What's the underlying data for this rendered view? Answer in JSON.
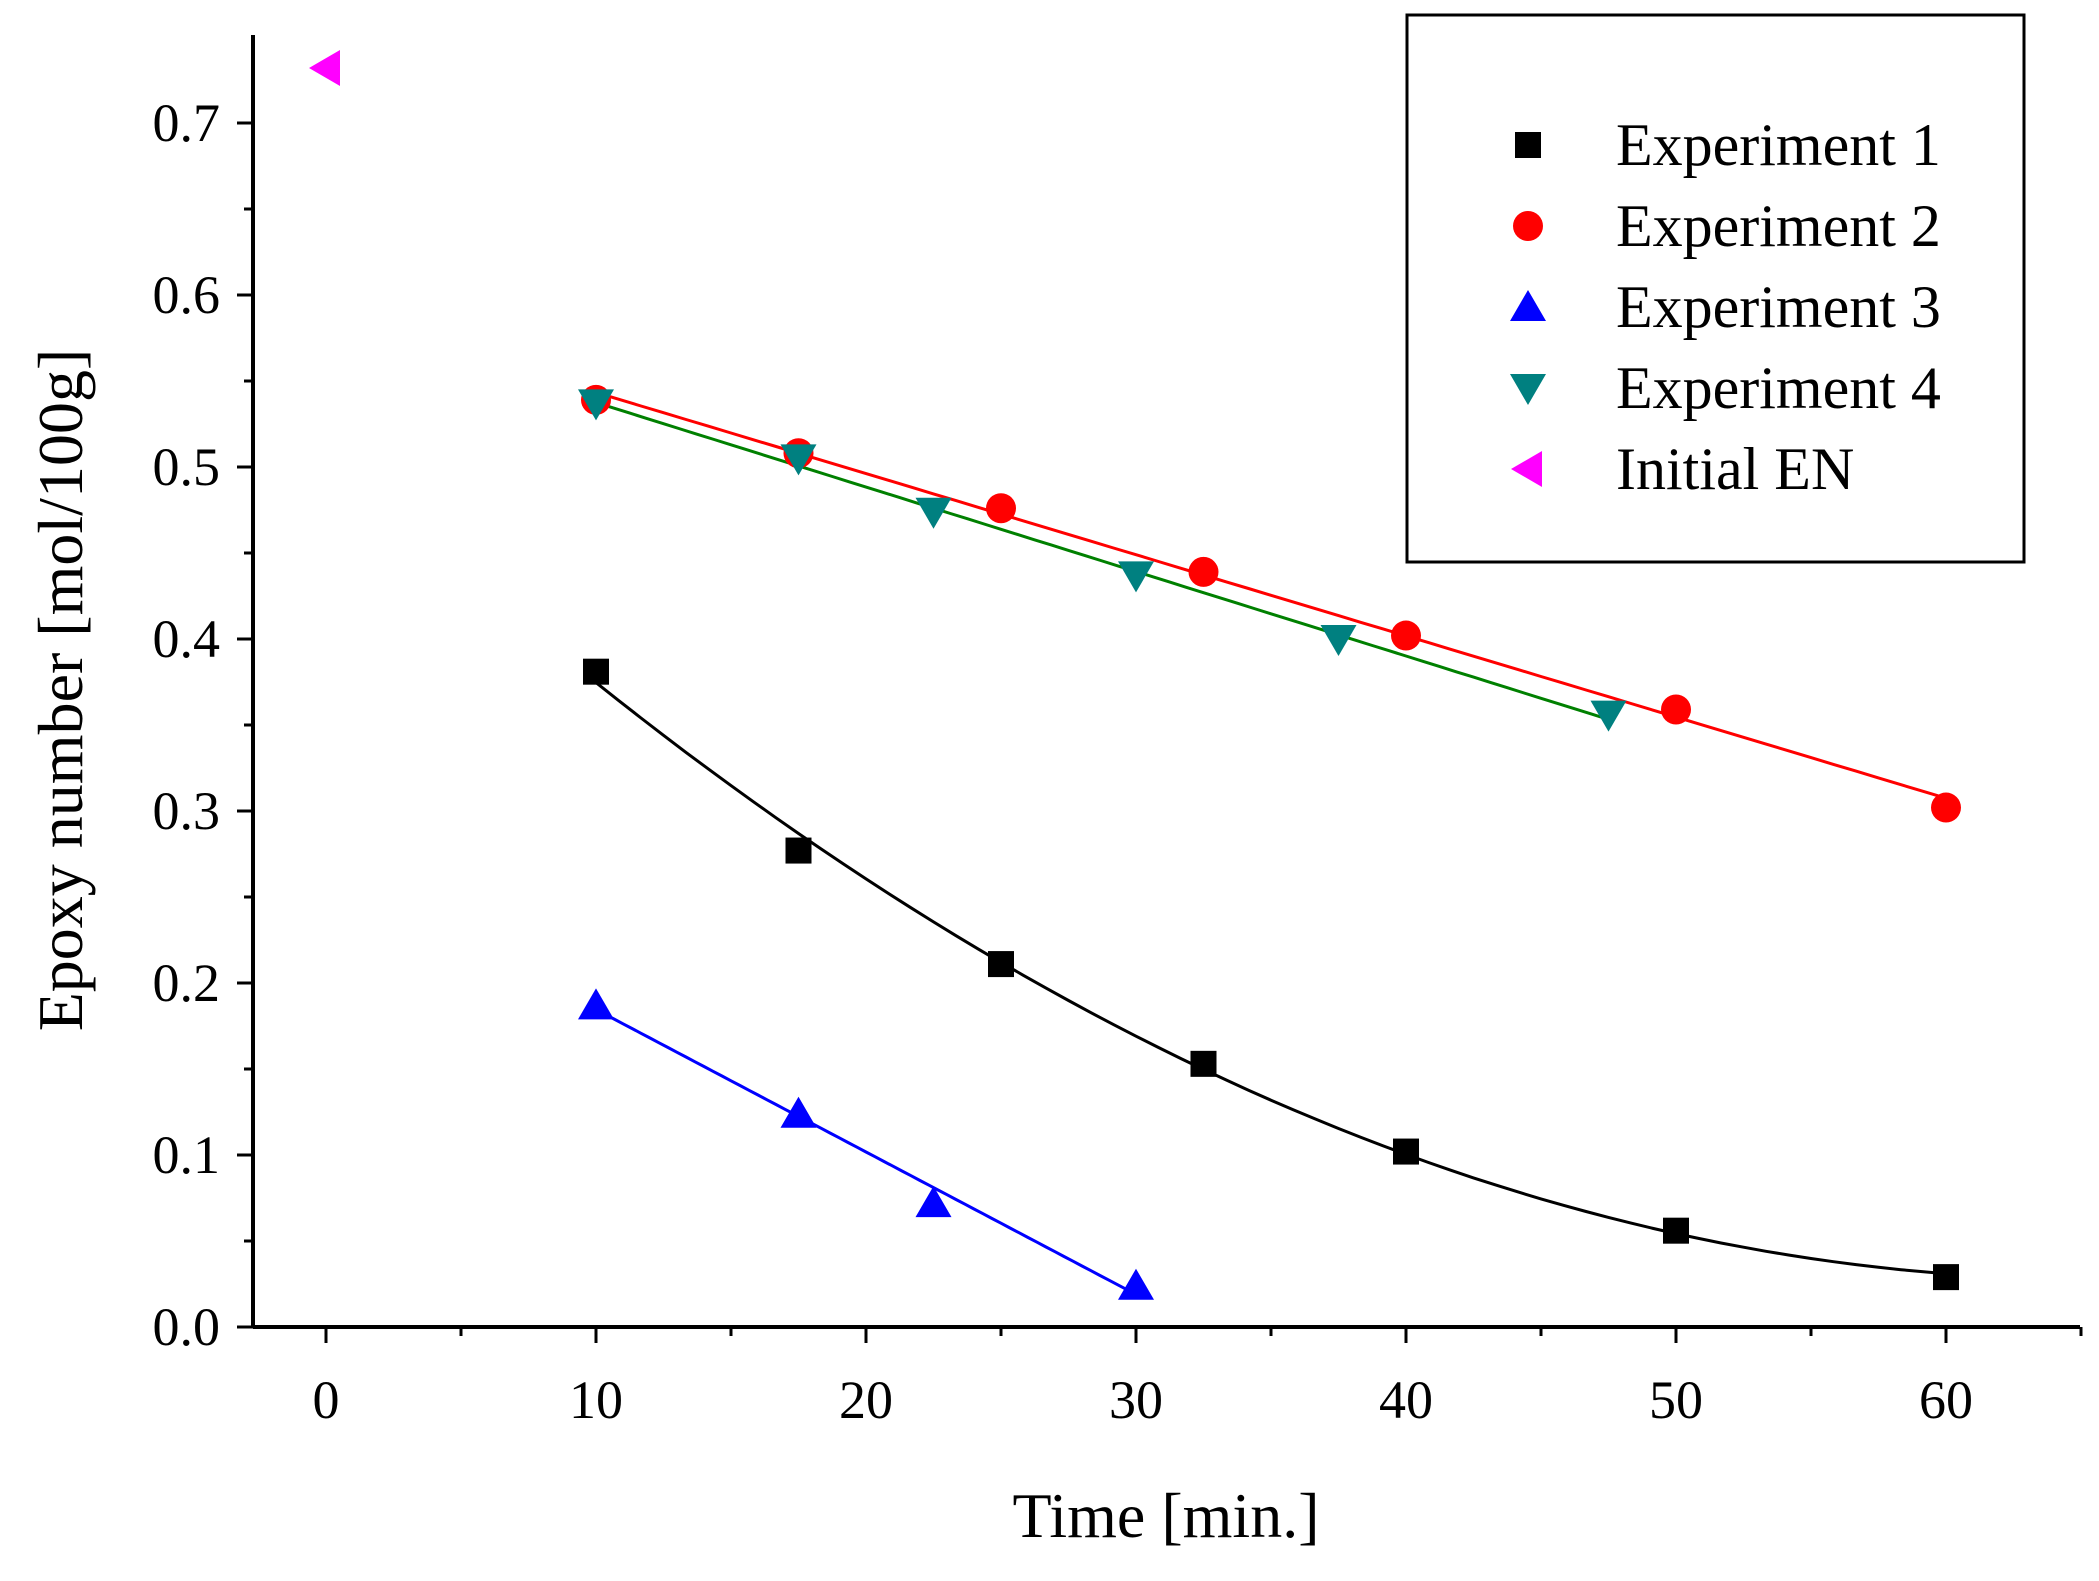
{
  "chart_data": {
    "type": "scatter",
    "title": "",
    "xlabel": "Time [min.]",
    "ylabel": "Epoxy number [mol/100g]",
    "xlim": [
      -3,
      65
    ],
    "ylim": [
      0.0,
      0.75
    ],
    "xticks": [
      0,
      10,
      20,
      30,
      40,
      50,
      60
    ],
    "xtick_labels": [
      "0",
      "10",
      "20",
      "30",
      "40",
      "50",
      "60"
    ],
    "yticks": [
      0.0,
      0.1,
      0.2,
      0.3,
      0.4,
      0.5,
      0.6,
      0.7
    ],
    "ytick_labels": [
      "0.0",
      "0.1",
      "0.2",
      "0.3",
      "0.4",
      "0.5",
      "0.6",
      "0.7"
    ],
    "grid": false,
    "legend_position": "top-right",
    "series": [
      {
        "name": "Experiment 1",
        "marker": "square",
        "color": "#000000",
        "fit_color": "#000000",
        "fit": "curve",
        "x": [
          10,
          17.5,
          25,
          32.5,
          40,
          50,
          60
        ],
        "y": [
          0.381,
          0.277,
          0.211,
          0.153,
          0.102,
          0.056,
          0.029
        ]
      },
      {
        "name": "Experiment 2",
        "marker": "circle",
        "color": "#ff0000",
        "fit_color": "#ff0000",
        "fit": "line",
        "x": [
          10,
          17.5,
          25,
          32.5,
          40,
          50,
          60
        ],
        "y": [
          0.539,
          0.508,
          0.476,
          0.439,
          0.402,
          0.359,
          0.302
        ]
      },
      {
        "name": "Experiment 3",
        "marker": "triangle-up",
        "color": "#0000ff",
        "fit_color": "#0000ff",
        "fit": "line",
        "x": [
          10,
          17.5,
          22.5,
          30
        ],
        "y": [
          0.187,
          0.124,
          0.072,
          0.024
        ]
      },
      {
        "name": "Experiment 4",
        "marker": "triangle-down",
        "color": "#008080",
        "fit_color": "#008000",
        "fit": "line",
        "x": [
          10,
          17.5,
          22.5,
          30,
          37.5,
          47.5
        ],
        "y": [
          0.537,
          0.505,
          0.474,
          0.437,
          0.4,
          0.356
        ]
      },
      {
        "name": "Initial EN",
        "marker": "triangle-left",
        "color": "#ff00ff",
        "fit": "none",
        "x": [
          0
        ],
        "y": [
          0.732
        ]
      }
    ]
  }
}
